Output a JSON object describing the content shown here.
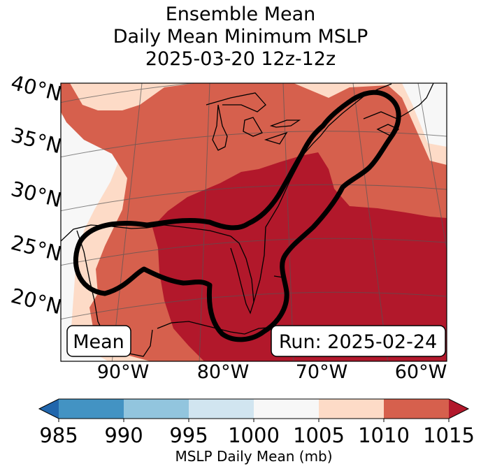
{
  "chart_data": {
    "type": "heatmap",
    "title": [
      "Ensemble Mean",
      "Daily Mean Minimum MSLP",
      "2025-03-20 12z-12z"
    ],
    "map_region": "Eastern United States, Gulf of Mexico and western Atlantic",
    "lat_labels": [
      "40°N",
      "35°N",
      "30°N",
      "25°N",
      "20°N"
    ],
    "lon_labels": [
      "90°W",
      "80°W",
      "70°W",
      "60°W"
    ],
    "colorbar": {
      "label": "MSLP Daily Mean (mb)",
      "ticks": [
        "985",
        "990",
        "995",
        "1000",
        "1005",
        "1010",
        "1015"
      ],
      "bins": [
        {
          "range": [
            980,
            985
          ],
          "color": "#2166ac"
        },
        {
          "range": [
            985,
            990
          ],
          "color": "#4393c3"
        },
        {
          "range": [
            990,
            995
          ],
          "color": "#92c5de"
        },
        {
          "range": [
            995,
            1000
          ],
          "color": "#d1e5f0"
        },
        {
          "range": [
            1000,
            1005
          ],
          "color": "#f7f7f7"
        },
        {
          "range": [
            1005,
            1010
          ],
          "color": "#fddbc7"
        },
        {
          "range": [
            1010,
            1015
          ],
          "color": "#d6604d"
        },
        {
          "range": [
            1015,
            1020
          ],
          "color": "#b2182b"
        }
      ],
      "extend": "both"
    },
    "contour": {
      "description": "Ensemble mean MSLP contour",
      "color": "#000000"
    },
    "annotations": {
      "left_box": "Mean",
      "right_box": "Run: 2025-02-24"
    }
  }
}
